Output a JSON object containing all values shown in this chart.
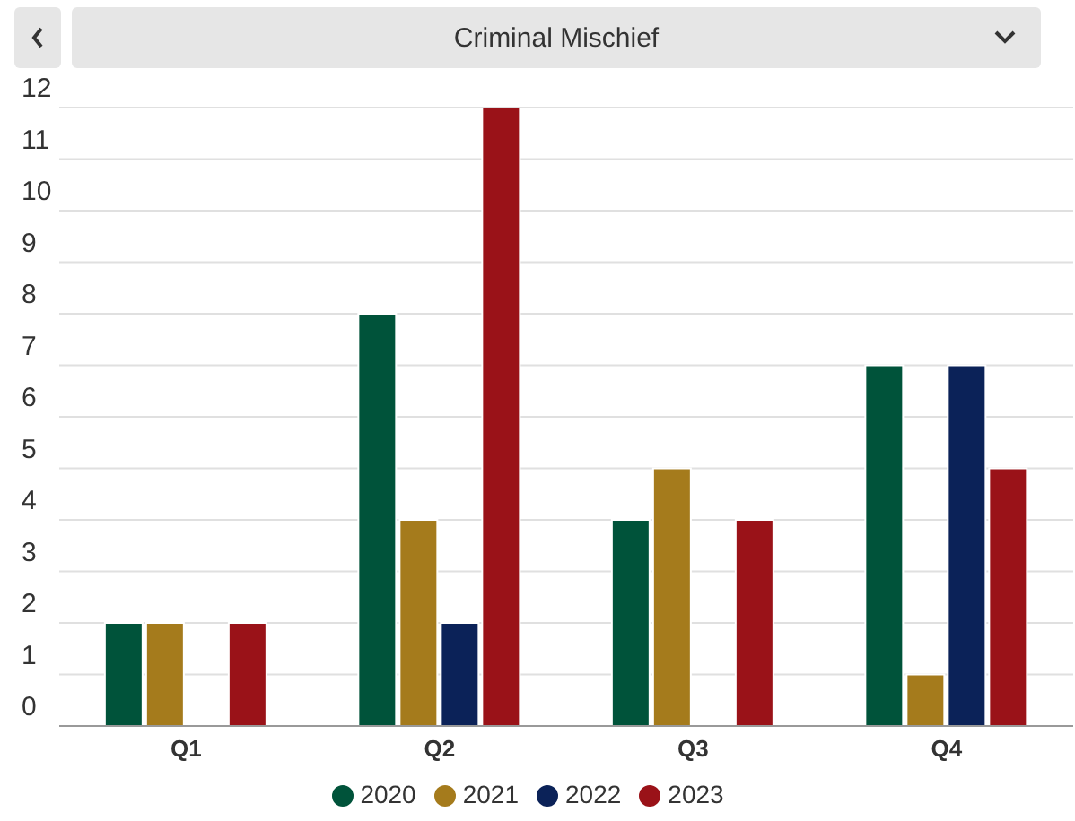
{
  "chart_data": {
    "type": "bar",
    "title": "Criminal Mischief",
    "categories": [
      "Q1",
      "Q2",
      "Q3",
      "Q4"
    ],
    "series": [
      {
        "name": "2020",
        "color": "#00533a",
        "values": [
          2,
          8,
          4,
          7
        ]
      },
      {
        "name": "2021",
        "color": "#a57b1c",
        "values": [
          2,
          4,
          5,
          1
        ]
      },
      {
        "name": "2022",
        "color": "#0b2258",
        "values": [
          null,
          2,
          null,
          7
        ]
      },
      {
        "name": "2023",
        "color": "#9a1218",
        "values": [
          2,
          12,
          4,
          5
        ]
      }
    ],
    "ylim": [
      0,
      12
    ],
    "yticks": [
      0,
      1,
      2,
      3,
      4,
      5,
      6,
      7,
      8,
      9,
      10,
      11,
      12
    ],
    "grid": "y",
    "legend": "bottom"
  }
}
